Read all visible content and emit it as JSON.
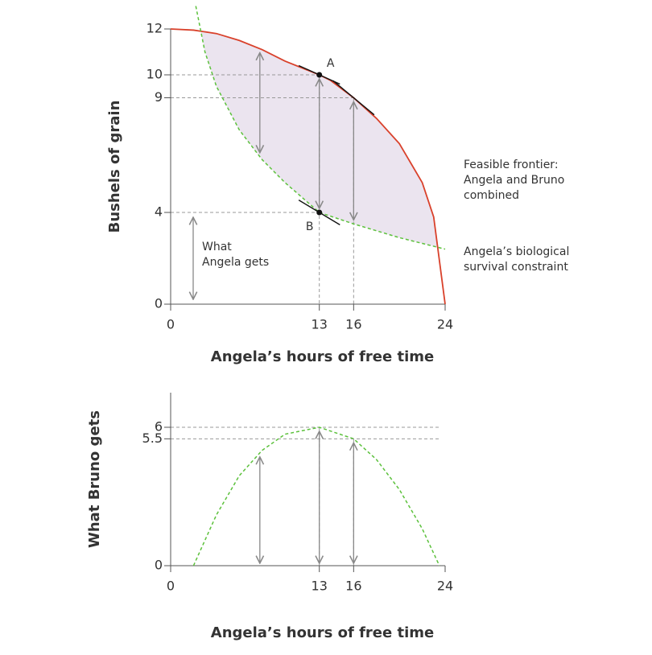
{
  "chart_data": [
    {
      "type": "line",
      "xlabel": "Angela’s hours of free time",
      "ylabel": "Bushels of grain",
      "xlim": [
        0,
        24
      ],
      "ylim": [
        0,
        12
      ],
      "xticks": [
        0,
        13,
        16,
        24
      ],
      "yticks": [
        0,
        4,
        9,
        10,
        12
      ],
      "series": [
        {
          "label": [
            "Feasible frontier:",
            "Angela and Bruno",
            "combined"
          ],
          "color": "#d9412b",
          "dash": false,
          "x": [
            0,
            2,
            4,
            6,
            8,
            10,
            12,
            13,
            14,
            16,
            18,
            20,
            22,
            23,
            24
          ],
          "values": [
            12,
            11.95,
            11.8,
            11.5,
            11.1,
            10.6,
            10.2,
            10,
            9.75,
            9,
            8.1,
            7,
            5.3,
            3.8,
            0
          ]
        },
        {
          "label": [
            "Angela’s biological",
            "survival constraint"
          ],
          "color": "#5cc13c",
          "dash": true,
          "x": [
            2.2,
            3,
            4,
            6,
            8,
            10,
            13,
            16,
            20,
            24
          ],
          "values": [
            13,
            11,
            9.5,
            7.6,
            6.3,
            5.3,
            4,
            3.5,
            2.9,
            2.4
          ]
        }
      ],
      "points": [
        {
          "label": "A",
          "x": 13,
          "y": 10
        },
        {
          "label": "B",
          "x": 13,
          "y": 4
        }
      ],
      "annotations": [
        {
          "text": [
            "What",
            "Angela gets"
          ]
        }
      ],
      "fill_color": "#ebe4ef"
    },
    {
      "type": "line",
      "xlabel": "Angela’s hours of free time",
      "ylabel": "What Bruno gets",
      "xlim": [
        0,
        24
      ],
      "ylim": [
        0,
        7.5
      ],
      "xticks": [
        0,
        13,
        16,
        24
      ],
      "yticks": [
        0,
        5.5,
        6
      ],
      "series": [
        {
          "color": "#5cc13c",
          "dash": true,
          "x": [
            2,
            4,
            6,
            8,
            10,
            13,
            16,
            18,
            20,
            22,
            23.5
          ],
          "values": [
            0,
            2.2,
            3.9,
            5.0,
            5.7,
            6,
            5.5,
            4.6,
            3.3,
            1.6,
            0
          ]
        }
      ]
    }
  ]
}
